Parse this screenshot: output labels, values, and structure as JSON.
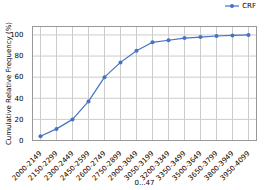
{
  "chart_data": {
    "type": "line",
    "xlabel": "0...47",
    "ylabel": "Cumulative Relative Frequency (%)",
    "categories": [
      "2000-2149",
      "2150-2299",
      "2300-2449",
      "2450-2599",
      "2600-2749",
      "2750-2899",
      "2900-3049",
      "3050-3199",
      "3200-3349",
      "3350-3499",
      "3500-3649",
      "3650-3799",
      "3800-3949",
      "3950-4099"
    ],
    "series": [
      {
        "name": "CRF",
        "color": "#4472c4",
        "marker": "circle",
        "values": [
          4,
          11,
          20,
          37,
          60,
          74,
          85,
          93,
          95,
          97,
          98,
          99,
          99.5,
          100
        ]
      }
    ],
    "ylim": [
      0,
      108
    ],
    "yticks": [
      0,
      20,
      40,
      60,
      80,
      100
    ],
    "grid": true,
    "legend": "upper right"
  }
}
